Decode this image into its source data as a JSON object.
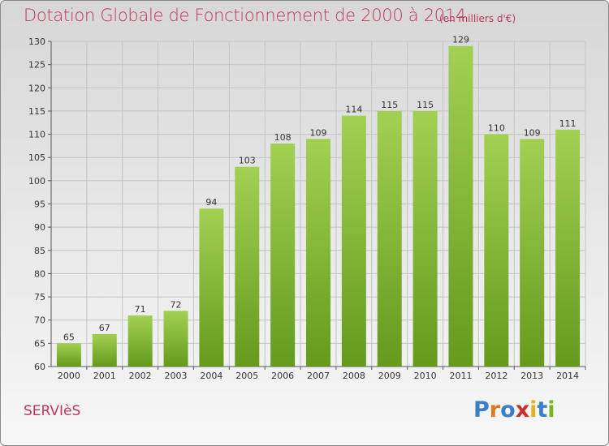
{
  "header": {
    "title": "Dotation Globale de Fonctionnement de 2000 à 2014",
    "unit": "(en milliers d'€)"
  },
  "footer": {
    "commune": "SERVIèS",
    "brand": "Proxiti"
  },
  "colors": {
    "title": "#c0365a",
    "bar_light": "#9ccb4c",
    "bar_dark": "#6a9a1f",
    "grid": "#bdbdbd"
  },
  "chart_data": {
    "type": "bar",
    "title": "Dotation Globale de Fonctionnement de 2000 à 2014",
    "subtitle": "(en milliers d'€)",
    "xlabel": "",
    "ylabel": "",
    "categories": [
      "2000",
      "2001",
      "2002",
      "2003",
      "2004",
      "2005",
      "2006",
      "2007",
      "2008",
      "2009",
      "2010",
      "2011",
      "2012",
      "2013",
      "2014"
    ],
    "values": [
      65,
      67,
      71,
      72,
      94,
      103,
      108,
      109,
      114,
      115,
      115,
      129,
      110,
      109,
      111
    ],
    "ylim": [
      60,
      130
    ],
    "yticks": [
      60,
      65,
      70,
      75,
      80,
      85,
      90,
      95,
      100,
      105,
      110,
      115,
      120,
      125,
      130
    ],
    "grid": true,
    "legend": "none"
  }
}
